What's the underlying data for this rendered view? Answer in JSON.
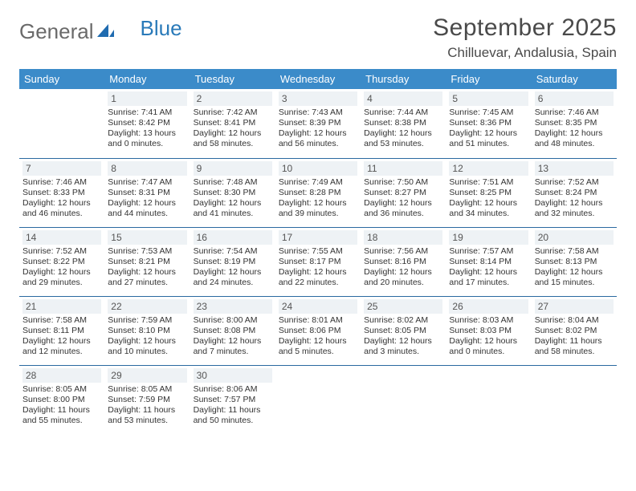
{
  "logo": {
    "text_general": "General",
    "text_blue": "Blue"
  },
  "header": {
    "month_title": "September 2025",
    "location": "Chilluevar, Andalusia, Spain"
  },
  "colors": {
    "header_bg": "#3b8bc9",
    "header_text": "#ffffff",
    "daynum_bg": "#eef2f5",
    "row_border": "#2a6aa0",
    "logo_blue": "#2a7ab9"
  },
  "weekdays": [
    "Sunday",
    "Monday",
    "Tuesday",
    "Wednesday",
    "Thursday",
    "Friday",
    "Saturday"
  ],
  "weeks": [
    [
      {
        "empty": true
      },
      {
        "day": "1",
        "sunrise": "Sunrise: 7:41 AM",
        "sunset": "Sunset: 8:42 PM",
        "daylight1": "Daylight: 13 hours",
        "daylight2": "and 0 minutes."
      },
      {
        "day": "2",
        "sunrise": "Sunrise: 7:42 AM",
        "sunset": "Sunset: 8:41 PM",
        "daylight1": "Daylight: 12 hours",
        "daylight2": "and 58 minutes."
      },
      {
        "day": "3",
        "sunrise": "Sunrise: 7:43 AM",
        "sunset": "Sunset: 8:39 PM",
        "daylight1": "Daylight: 12 hours",
        "daylight2": "and 56 minutes."
      },
      {
        "day": "4",
        "sunrise": "Sunrise: 7:44 AM",
        "sunset": "Sunset: 8:38 PM",
        "daylight1": "Daylight: 12 hours",
        "daylight2": "and 53 minutes."
      },
      {
        "day": "5",
        "sunrise": "Sunrise: 7:45 AM",
        "sunset": "Sunset: 8:36 PM",
        "daylight1": "Daylight: 12 hours",
        "daylight2": "and 51 minutes."
      },
      {
        "day": "6",
        "sunrise": "Sunrise: 7:46 AM",
        "sunset": "Sunset: 8:35 PM",
        "daylight1": "Daylight: 12 hours",
        "daylight2": "and 48 minutes."
      }
    ],
    [
      {
        "day": "7",
        "sunrise": "Sunrise: 7:46 AM",
        "sunset": "Sunset: 8:33 PM",
        "daylight1": "Daylight: 12 hours",
        "daylight2": "and 46 minutes."
      },
      {
        "day": "8",
        "sunrise": "Sunrise: 7:47 AM",
        "sunset": "Sunset: 8:31 PM",
        "daylight1": "Daylight: 12 hours",
        "daylight2": "and 44 minutes."
      },
      {
        "day": "9",
        "sunrise": "Sunrise: 7:48 AM",
        "sunset": "Sunset: 8:30 PM",
        "daylight1": "Daylight: 12 hours",
        "daylight2": "and 41 minutes."
      },
      {
        "day": "10",
        "sunrise": "Sunrise: 7:49 AM",
        "sunset": "Sunset: 8:28 PM",
        "daylight1": "Daylight: 12 hours",
        "daylight2": "and 39 minutes."
      },
      {
        "day": "11",
        "sunrise": "Sunrise: 7:50 AM",
        "sunset": "Sunset: 8:27 PM",
        "daylight1": "Daylight: 12 hours",
        "daylight2": "and 36 minutes."
      },
      {
        "day": "12",
        "sunrise": "Sunrise: 7:51 AM",
        "sunset": "Sunset: 8:25 PM",
        "daylight1": "Daylight: 12 hours",
        "daylight2": "and 34 minutes."
      },
      {
        "day": "13",
        "sunrise": "Sunrise: 7:52 AM",
        "sunset": "Sunset: 8:24 PM",
        "daylight1": "Daylight: 12 hours",
        "daylight2": "and 32 minutes."
      }
    ],
    [
      {
        "day": "14",
        "sunrise": "Sunrise: 7:52 AM",
        "sunset": "Sunset: 8:22 PM",
        "daylight1": "Daylight: 12 hours",
        "daylight2": "and 29 minutes."
      },
      {
        "day": "15",
        "sunrise": "Sunrise: 7:53 AM",
        "sunset": "Sunset: 8:21 PM",
        "daylight1": "Daylight: 12 hours",
        "daylight2": "and 27 minutes."
      },
      {
        "day": "16",
        "sunrise": "Sunrise: 7:54 AM",
        "sunset": "Sunset: 8:19 PM",
        "daylight1": "Daylight: 12 hours",
        "daylight2": "and 24 minutes."
      },
      {
        "day": "17",
        "sunrise": "Sunrise: 7:55 AM",
        "sunset": "Sunset: 8:17 PM",
        "daylight1": "Daylight: 12 hours",
        "daylight2": "and 22 minutes."
      },
      {
        "day": "18",
        "sunrise": "Sunrise: 7:56 AM",
        "sunset": "Sunset: 8:16 PM",
        "daylight1": "Daylight: 12 hours",
        "daylight2": "and 20 minutes."
      },
      {
        "day": "19",
        "sunrise": "Sunrise: 7:57 AM",
        "sunset": "Sunset: 8:14 PM",
        "daylight1": "Daylight: 12 hours",
        "daylight2": "and 17 minutes."
      },
      {
        "day": "20",
        "sunrise": "Sunrise: 7:58 AM",
        "sunset": "Sunset: 8:13 PM",
        "daylight1": "Daylight: 12 hours",
        "daylight2": "and 15 minutes."
      }
    ],
    [
      {
        "day": "21",
        "sunrise": "Sunrise: 7:58 AM",
        "sunset": "Sunset: 8:11 PM",
        "daylight1": "Daylight: 12 hours",
        "daylight2": "and 12 minutes."
      },
      {
        "day": "22",
        "sunrise": "Sunrise: 7:59 AM",
        "sunset": "Sunset: 8:10 PM",
        "daylight1": "Daylight: 12 hours",
        "daylight2": "and 10 minutes."
      },
      {
        "day": "23",
        "sunrise": "Sunrise: 8:00 AM",
        "sunset": "Sunset: 8:08 PM",
        "daylight1": "Daylight: 12 hours",
        "daylight2": "and 7 minutes."
      },
      {
        "day": "24",
        "sunrise": "Sunrise: 8:01 AM",
        "sunset": "Sunset: 8:06 PM",
        "daylight1": "Daylight: 12 hours",
        "daylight2": "and 5 minutes."
      },
      {
        "day": "25",
        "sunrise": "Sunrise: 8:02 AM",
        "sunset": "Sunset: 8:05 PM",
        "daylight1": "Daylight: 12 hours",
        "daylight2": "and 3 minutes."
      },
      {
        "day": "26",
        "sunrise": "Sunrise: 8:03 AM",
        "sunset": "Sunset: 8:03 PM",
        "daylight1": "Daylight: 12 hours",
        "daylight2": "and 0 minutes."
      },
      {
        "day": "27",
        "sunrise": "Sunrise: 8:04 AM",
        "sunset": "Sunset: 8:02 PM",
        "daylight1": "Daylight: 11 hours",
        "daylight2": "and 58 minutes."
      }
    ],
    [
      {
        "day": "28",
        "sunrise": "Sunrise: 8:05 AM",
        "sunset": "Sunset: 8:00 PM",
        "daylight1": "Daylight: 11 hours",
        "daylight2": "and 55 minutes."
      },
      {
        "day": "29",
        "sunrise": "Sunrise: 8:05 AM",
        "sunset": "Sunset: 7:59 PM",
        "daylight1": "Daylight: 11 hours",
        "daylight2": "and 53 minutes."
      },
      {
        "day": "30",
        "sunrise": "Sunrise: 8:06 AM",
        "sunset": "Sunset: 7:57 PM",
        "daylight1": "Daylight: 11 hours",
        "daylight2": "and 50 minutes."
      },
      {
        "empty": true
      },
      {
        "empty": true
      },
      {
        "empty": true
      },
      {
        "empty": true
      }
    ]
  ]
}
